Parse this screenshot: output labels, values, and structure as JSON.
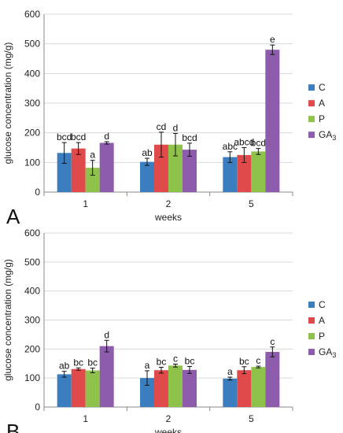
{
  "chart_data": [
    {
      "type": "bar",
      "panel": "A",
      "xlabel": "weeks",
      "ylabel": "glucose concentration (mg/g)",
      "ylim": [
        0,
        600
      ],
      "yticks": [
        0,
        100,
        200,
        300,
        400,
        500,
        600
      ],
      "categories": [
        "1",
        "2",
        "5"
      ],
      "grid": true,
      "legend_position": "right",
      "series": [
        {
          "name": "C",
          "color": "#3a7ebf",
          "values": [
            132,
            102,
            118
          ],
          "errors": [
            35,
            12,
            18
          ],
          "labels": [
            "bcd",
            "ab",
            "abc"
          ]
        },
        {
          "name": "A",
          "color": "#e04a4a",
          "values": [
            147,
            160,
            125
          ],
          "errors": [
            20,
            42,
            25
          ],
          "labels": [
            "bcd",
            "cd",
            "abcd"
          ]
        },
        {
          "name": "P",
          "color": "#8fc24a",
          "values": [
            82,
            160,
            137
          ],
          "errors": [
            25,
            38,
            10
          ],
          "labels": [
            "a",
            "d",
            "bcd"
          ]
        },
        {
          "name": "GA3",
          "color": "#8e5cad",
          "values": [
            166,
            143,
            480
          ],
          "errors": [
            4,
            22,
            16
          ],
          "labels": [
            "d",
            "bcd",
            "e"
          ]
        }
      ]
    },
    {
      "type": "bar",
      "panel": "B",
      "xlabel": "weeks",
      "ylabel": "glucose concentration (mg/g)",
      "ylim": [
        0,
        600
      ],
      "yticks": [
        0,
        100,
        200,
        300,
        400,
        500,
        600
      ],
      "categories": [
        "1",
        "2",
        "5"
      ],
      "grid": true,
      "legend_position": "right",
      "series": [
        {
          "name": "C",
          "color": "#3a7ebf",
          "values": [
            113,
            100,
            98
          ],
          "errors": [
            10,
            25,
            5
          ],
          "labels": [
            "ab",
            "a",
            "a"
          ]
        },
        {
          "name": "A",
          "color": "#e04a4a",
          "values": [
            131,
            127,
            127
          ],
          "errors": [
            4,
            10,
            12
          ],
          "labels": [
            "bc",
            "bc",
            "bc"
          ]
        },
        {
          "name": "P",
          "color": "#8fc24a",
          "values": [
            126,
            143,
            138
          ],
          "errors": [
            8,
            5,
            3
          ],
          "labels": [
            "bc",
            "c",
            "c"
          ]
        },
        {
          "name": "GA3",
          "color": "#8e5cad",
          "values": [
            210,
            128,
            190
          ],
          "errors": [
            20,
            12,
            17
          ],
          "labels": [
            "d",
            "bc",
            "c"
          ]
        }
      ]
    }
  ]
}
